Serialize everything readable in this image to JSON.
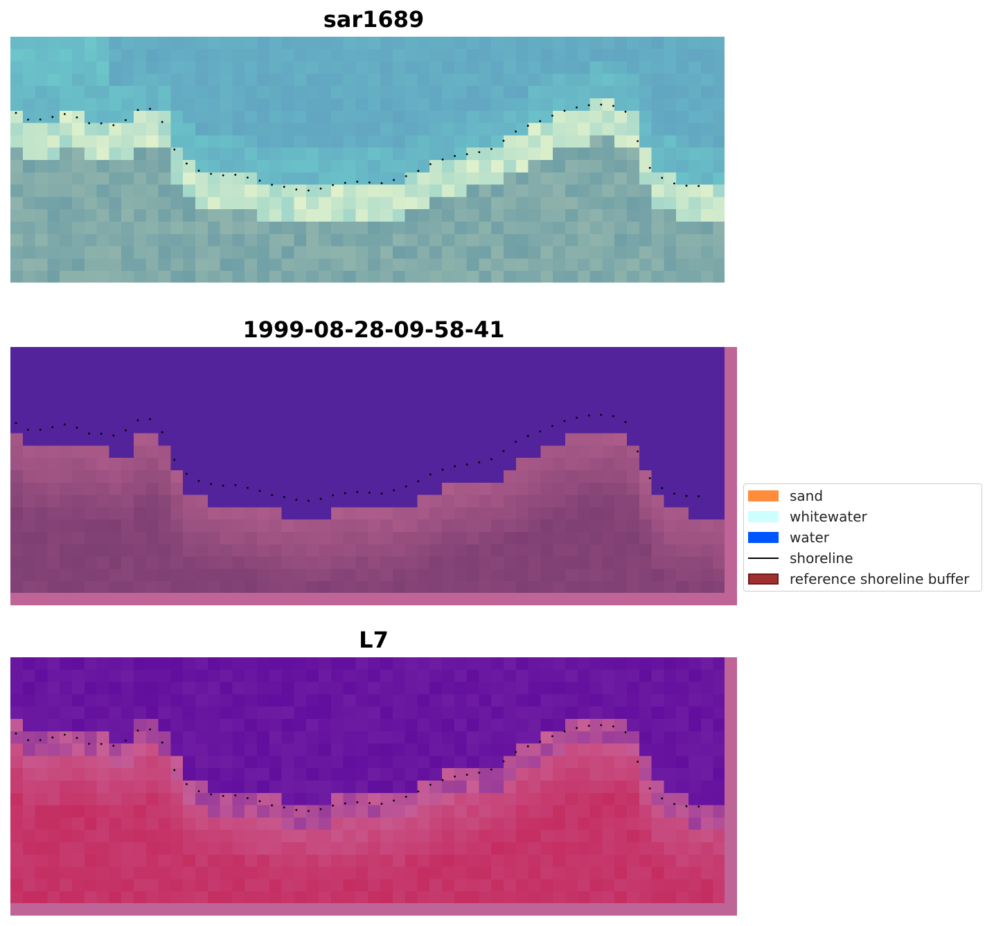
{
  "panels": [
    {
      "id": "rgb",
      "title": "sar1689"
    },
    {
      "id": "classified",
      "title": "1999-08-28-09-58-41"
    },
    {
      "id": "index",
      "title": "L7"
    }
  ],
  "legend": {
    "items": [
      {
        "label": "sand",
        "color": "#ff8c3a",
        "kind": "patch"
      },
      {
        "label": "whitewater",
        "color": "#ccfffd",
        "kind": "patch"
      },
      {
        "label": "water",
        "color": "#0055ff",
        "kind": "patch"
      },
      {
        "label": "shoreline",
        "color": "#000000",
        "kind": "line"
      },
      {
        "label": "reference shoreline buffer",
        "color": "#9e3030",
        "kind": "patch"
      }
    ]
  },
  "colors": {
    "water_class": "#52239a",
    "buffer_edge": "#bf6496",
    "land_dark": "#7e3f73",
    "land_light": "#b05e8c",
    "index_water": "#620e9e",
    "index_land": "#c52d60",
    "rgb_water": "#5e97bd",
    "rgb_shallow": "#6ac0c8",
    "rgb_surf": "#e6f3cc",
    "shoreline_dots": "#000000"
  }
}
